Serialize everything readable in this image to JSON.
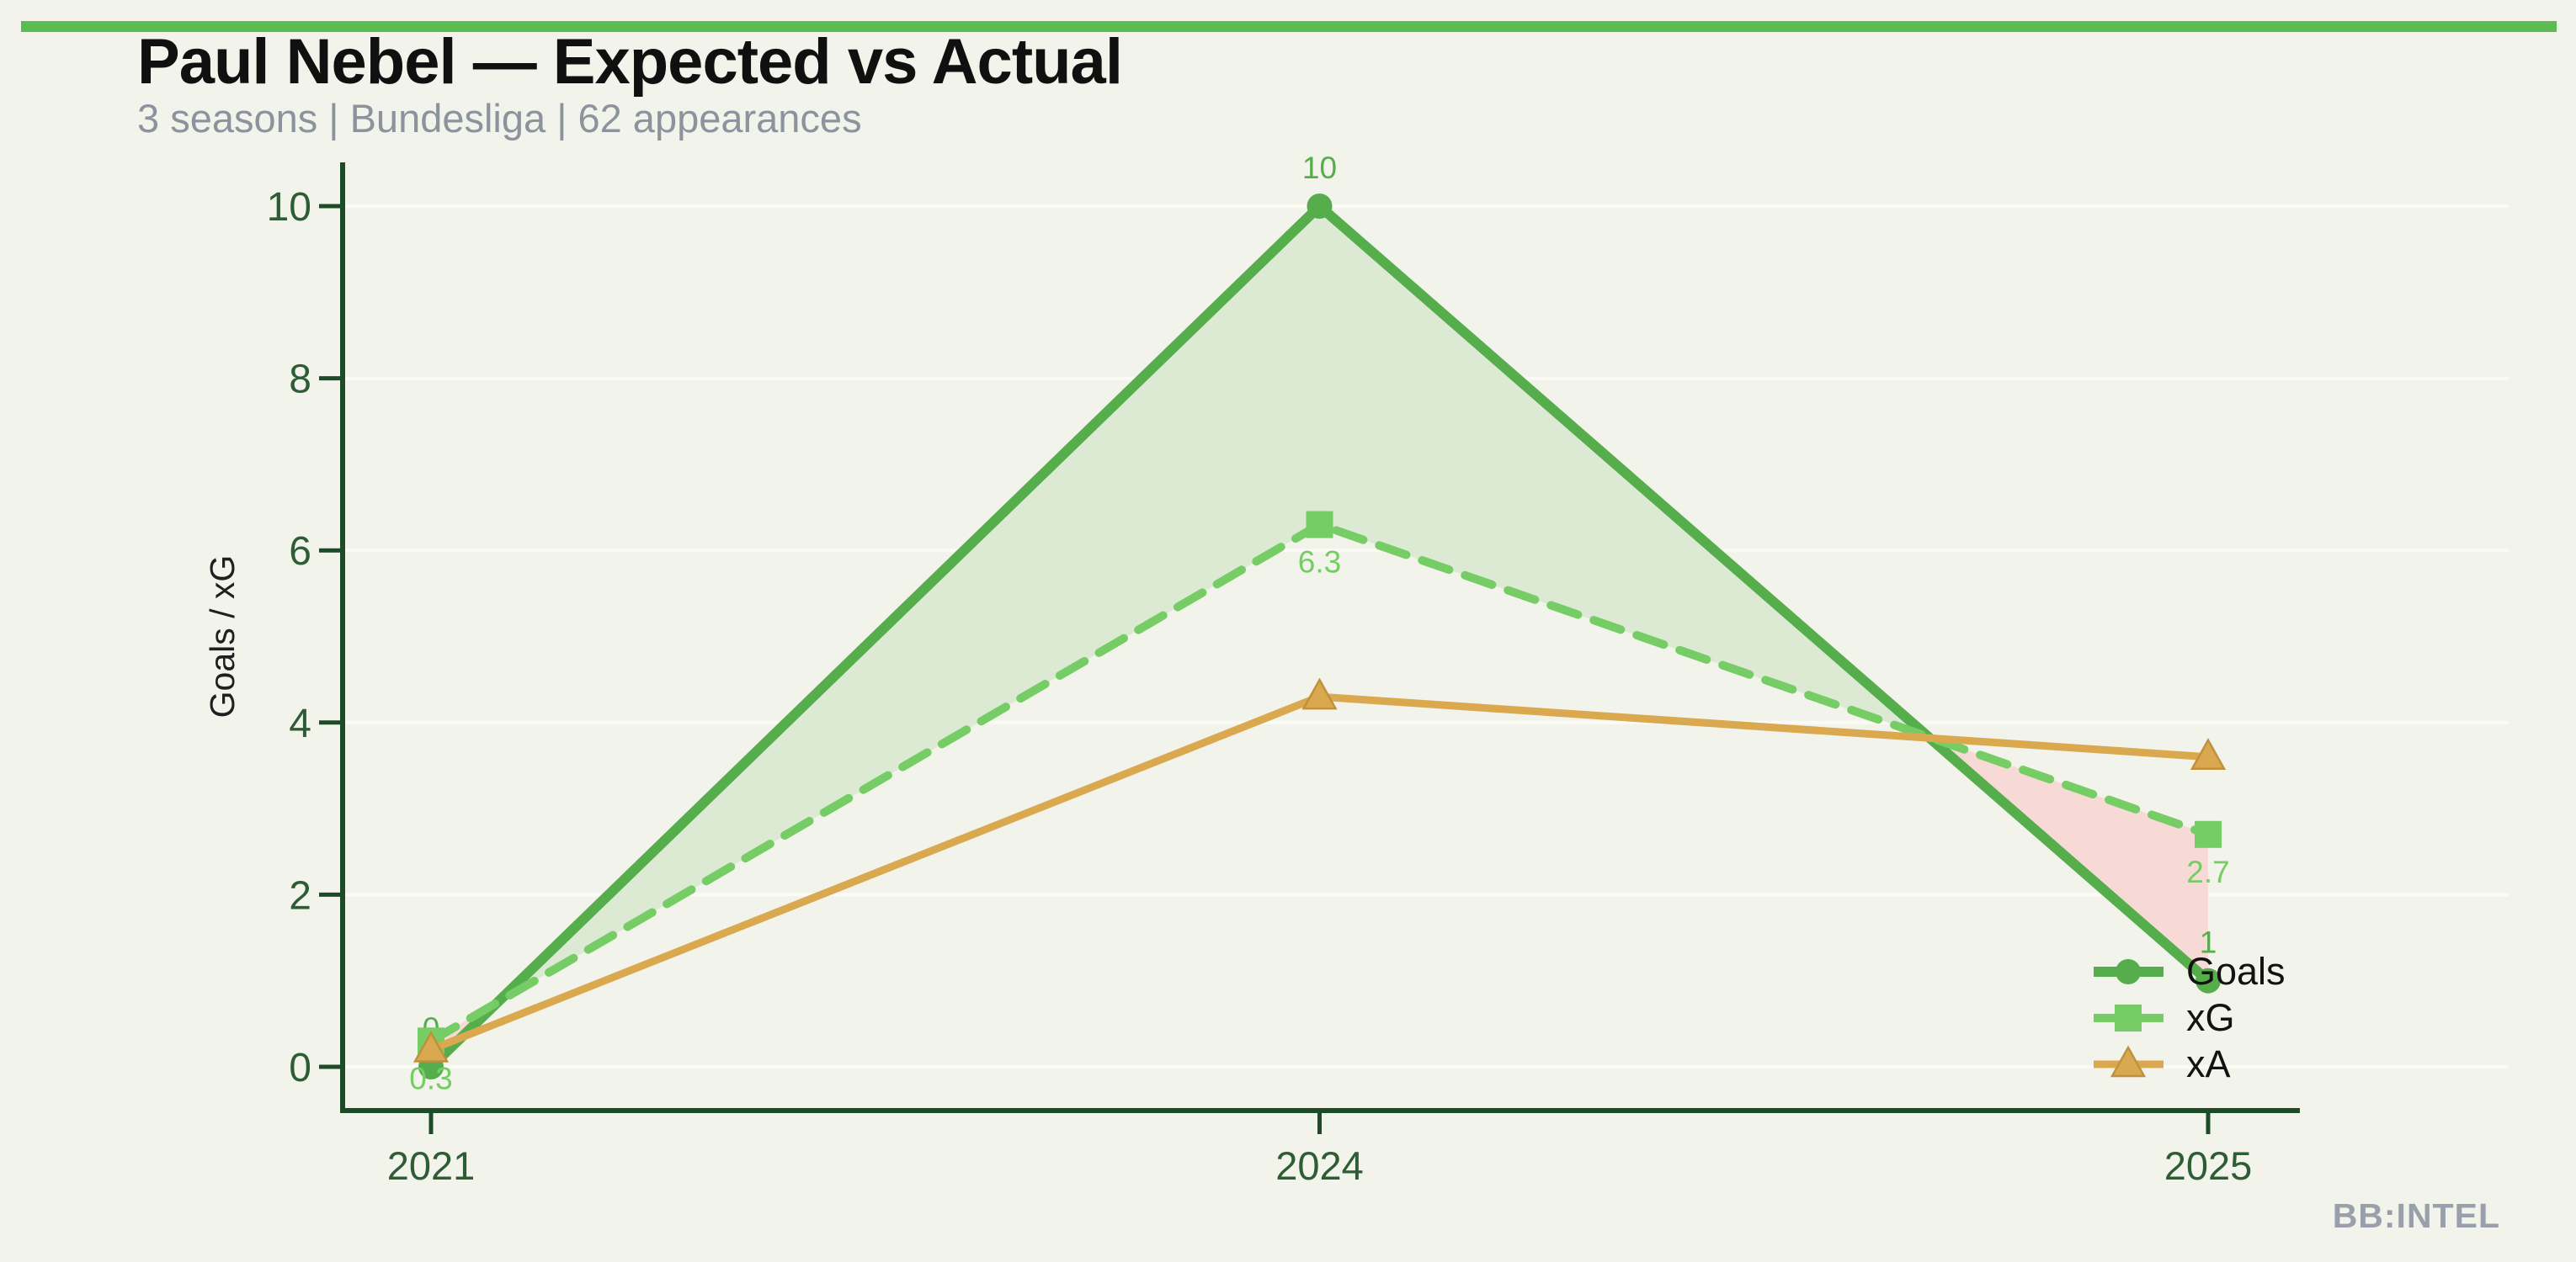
{
  "page": {
    "background": "#f2f3eb",
    "top_bar_color": "#5bbc4f"
  },
  "header": {
    "title": "Paul Nebel — Expected vs Actual",
    "subtitle": "3 seasons | Bundesliga | 62 appearances",
    "title_color": "#101010",
    "subtitle_color": "#8d939d"
  },
  "watermark": {
    "text": "BB:INTEL",
    "color": "#9aa0ab"
  },
  "chart_data": {
    "type": "line",
    "title": "Paul Nebel — Expected vs Actual",
    "categories": [
      "2021",
      "2024",
      "2025"
    ],
    "series": [
      {
        "name": "Goals",
        "values": [
          0,
          10,
          1
        ],
        "color": "#55ae4b",
        "marker": "circle",
        "line_style": "solid",
        "point_labels": [
          "0",
          "10",
          "1"
        ],
        "label_side": "above"
      },
      {
        "name": "xG",
        "values": [
          0.3,
          6.3,
          2.7
        ],
        "color": "#76cc65",
        "marker": "square",
        "line_style": "dashed",
        "point_labels": [
          "0.3",
          "6.3",
          "2.7"
        ],
        "label_side": "below"
      },
      {
        "name": "xA",
        "values": [
          0.2,
          4.3,
          3.6
        ],
        "color": "#d9a84f",
        "marker": "triangle",
        "line_style": "solid",
        "point_labels": [],
        "label_side": "none"
      }
    ],
    "fill_between": {
      "upper_series": "Goals",
      "lower_series": "xG",
      "overperform_color": "#dcead4",
      "underperform_color": "#f7dad6"
    },
    "xlabel": "",
    "ylabel": "Goals / xG",
    "yticks": [
      "0",
      "2",
      "4",
      "6",
      "8",
      "10"
    ],
    "ylim": [
      -0.5,
      10.5
    ],
    "grid": true,
    "legend_position": "lower right",
    "legend_entries": [
      "Goals",
      "xG",
      "xA"
    ],
    "colors": {
      "axis": "#1e4b27",
      "tick_labels": "#2e5c35",
      "gridline": "#fafbf5",
      "ylabel_color": "#1f1f1f",
      "legend_text": "#121212",
      "triangle_edge": "#c0913c"
    }
  }
}
